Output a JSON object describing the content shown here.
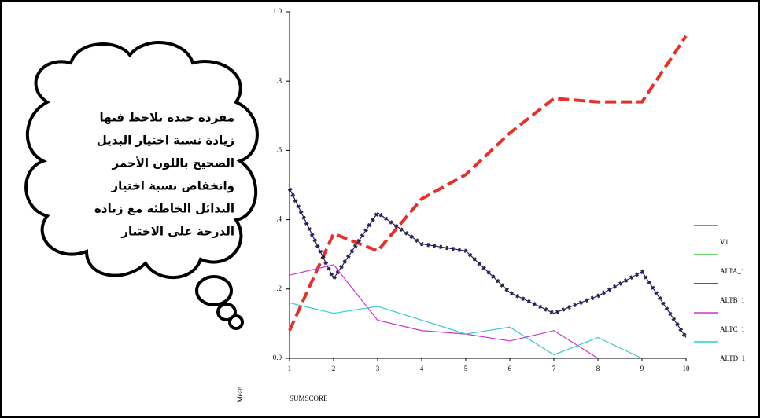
{
  "chart_data": {
    "type": "line",
    "annotation": [
      "مفردة جيدة يلاحظ فيها",
      "زيادة نسبة اختيار البديل",
      "الصحيح باللون الأحمر",
      "وانخفاض نسبة اختيار",
      "البدائل الخاطئة مع زيادة",
      "الدرجة على الاختبار"
    ],
    "xlabel": "SUMSCORE",
    "ylabel": "Mean",
    "x": [
      1,
      2,
      3,
      4,
      5,
      6,
      7,
      8,
      9,
      10
    ],
    "xlim": [
      1,
      10
    ],
    "xticks": [
      1,
      2,
      3,
      4,
      5,
      6,
      7,
      8,
      9,
      10
    ],
    "ylim": [
      0,
      1
    ],
    "yticks": [
      {
        "value": 0,
        "label": "0.0"
      },
      {
        "value": 0.2,
        "label": ".2"
      },
      {
        "value": 0.4,
        "label": ".4"
      },
      {
        "value": 0.6,
        "label": ".6"
      },
      {
        "value": 0.8,
        "label": ".8"
      },
      {
        "value": 1,
        "label": "1.0"
      }
    ],
    "series": [
      {
        "name": "V1",
        "color": "#e8302a",
        "values": [
          0.08,
          0.36,
          0.31,
          0.46,
          0.53,
          0.65,
          0.75,
          0.74,
          0.74,
          0.93
        ]
      },
      {
        "name": "ALTA_1",
        "color": "#33cc33",
        "values": [
          null,
          null,
          null,
          null,
          null,
          null,
          null,
          null,
          null,
          null
        ]
      },
      {
        "name": "ALTB_1",
        "color": "#1a1a80",
        "values": [
          0.49,
          0.23,
          0.42,
          0.33,
          0.31,
          0.19,
          0.13,
          0.18,
          0.25,
          0.06
        ]
      },
      {
        "name": "ALTC_1",
        "color": "#cc33cc",
        "values": [
          0.24,
          0.27,
          0.11,
          0.08,
          0.07,
          0.05,
          0.08,
          0.0,
          null,
          null
        ]
      },
      {
        "name": "ALTD_1",
        "color": "#33cccc",
        "values": [
          0.16,
          0.13,
          0.15,
          0.11,
          0.07,
          0.09,
          0.01,
          0.06,
          0.0,
          null
        ]
      }
    ]
  }
}
